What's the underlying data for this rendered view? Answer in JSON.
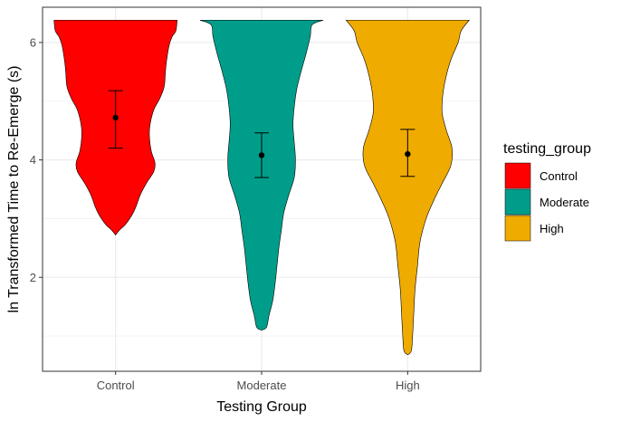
{
  "chart_data": {
    "type": "violin",
    "xlabel": "Testing Group",
    "ylabel": "ln Transformed Time to Re-Emerge (s)",
    "ylim": [
      0.4,
      6.6
    ],
    "y_ticks": [
      2,
      4,
      6
    ],
    "y_tick_labels": [
      "2",
      "4",
      "6"
    ],
    "grid": true,
    "legend": {
      "title": "testing_group",
      "placement": "right",
      "entries": [
        "Control",
        "Moderate",
        "High"
      ]
    },
    "categories": [
      "Control",
      "Moderate",
      "High"
    ],
    "series": [
      {
        "name": "Control",
        "color": "#ff0000",
        "mean": 4.72,
        "ci": [
          4.2,
          5.18
        ],
        "violin": [
          [
            2.72,
            0.0
          ],
          [
            2.8,
            0.06
          ],
          [
            2.9,
            0.16
          ],
          [
            3.05,
            0.26
          ],
          [
            3.2,
            0.33
          ],
          [
            3.4,
            0.4
          ],
          [
            3.6,
            0.5
          ],
          [
            3.8,
            0.62
          ],
          [
            3.95,
            0.64
          ],
          [
            4.15,
            0.58
          ],
          [
            4.4,
            0.55
          ],
          [
            4.6,
            0.56
          ],
          [
            4.85,
            0.62
          ],
          [
            5.05,
            0.72
          ],
          [
            5.25,
            0.79
          ],
          [
            5.5,
            0.81
          ],
          [
            5.7,
            0.83
          ],
          [
            5.95,
            0.87
          ],
          [
            6.1,
            0.92
          ],
          [
            6.2,
            0.98
          ],
          [
            6.38,
            1.0
          ]
        ]
      },
      {
        "name": "Moderate",
        "color": "#009e8a",
        "mean": 4.08,
        "ci": [
          3.7,
          4.46
        ],
        "violin": [
          [
            1.1,
            0.0
          ],
          [
            1.15,
            0.08
          ],
          [
            1.35,
            0.12
          ],
          [
            1.6,
            0.18
          ],
          [
            1.9,
            0.22
          ],
          [
            2.2,
            0.25
          ],
          [
            2.5,
            0.28
          ],
          [
            2.8,
            0.32
          ],
          [
            3.1,
            0.36
          ],
          [
            3.4,
            0.44
          ],
          [
            3.7,
            0.53
          ],
          [
            4.0,
            0.55
          ],
          [
            4.3,
            0.53
          ],
          [
            4.6,
            0.51
          ],
          [
            4.9,
            0.53
          ],
          [
            5.2,
            0.57
          ],
          [
            5.5,
            0.64
          ],
          [
            5.8,
            0.72
          ],
          [
            6.1,
            0.79
          ],
          [
            6.3,
            0.82
          ],
          [
            6.38,
            1.0
          ]
        ]
      },
      {
        "name": "High",
        "color": "#f0ab00",
        "mean": 4.1,
        "ci": [
          3.72,
          4.52
        ],
        "violin": [
          [
            0.68,
            0.0
          ],
          [
            0.75,
            0.06
          ],
          [
            1.0,
            0.08
          ],
          [
            1.4,
            0.1
          ],
          [
            1.8,
            0.12
          ],
          [
            2.2,
            0.16
          ],
          [
            2.6,
            0.2
          ],
          [
            3.0,
            0.3
          ],
          [
            3.3,
            0.42
          ],
          [
            3.6,
            0.56
          ],
          [
            3.9,
            0.7
          ],
          [
            4.2,
            0.72
          ],
          [
            4.5,
            0.63
          ],
          [
            4.8,
            0.56
          ],
          [
            5.1,
            0.57
          ],
          [
            5.4,
            0.62
          ],
          [
            5.7,
            0.7
          ],
          [
            6.0,
            0.82
          ],
          [
            6.2,
            0.87
          ],
          [
            6.38,
            1.0
          ]
        ]
      }
    ]
  }
}
